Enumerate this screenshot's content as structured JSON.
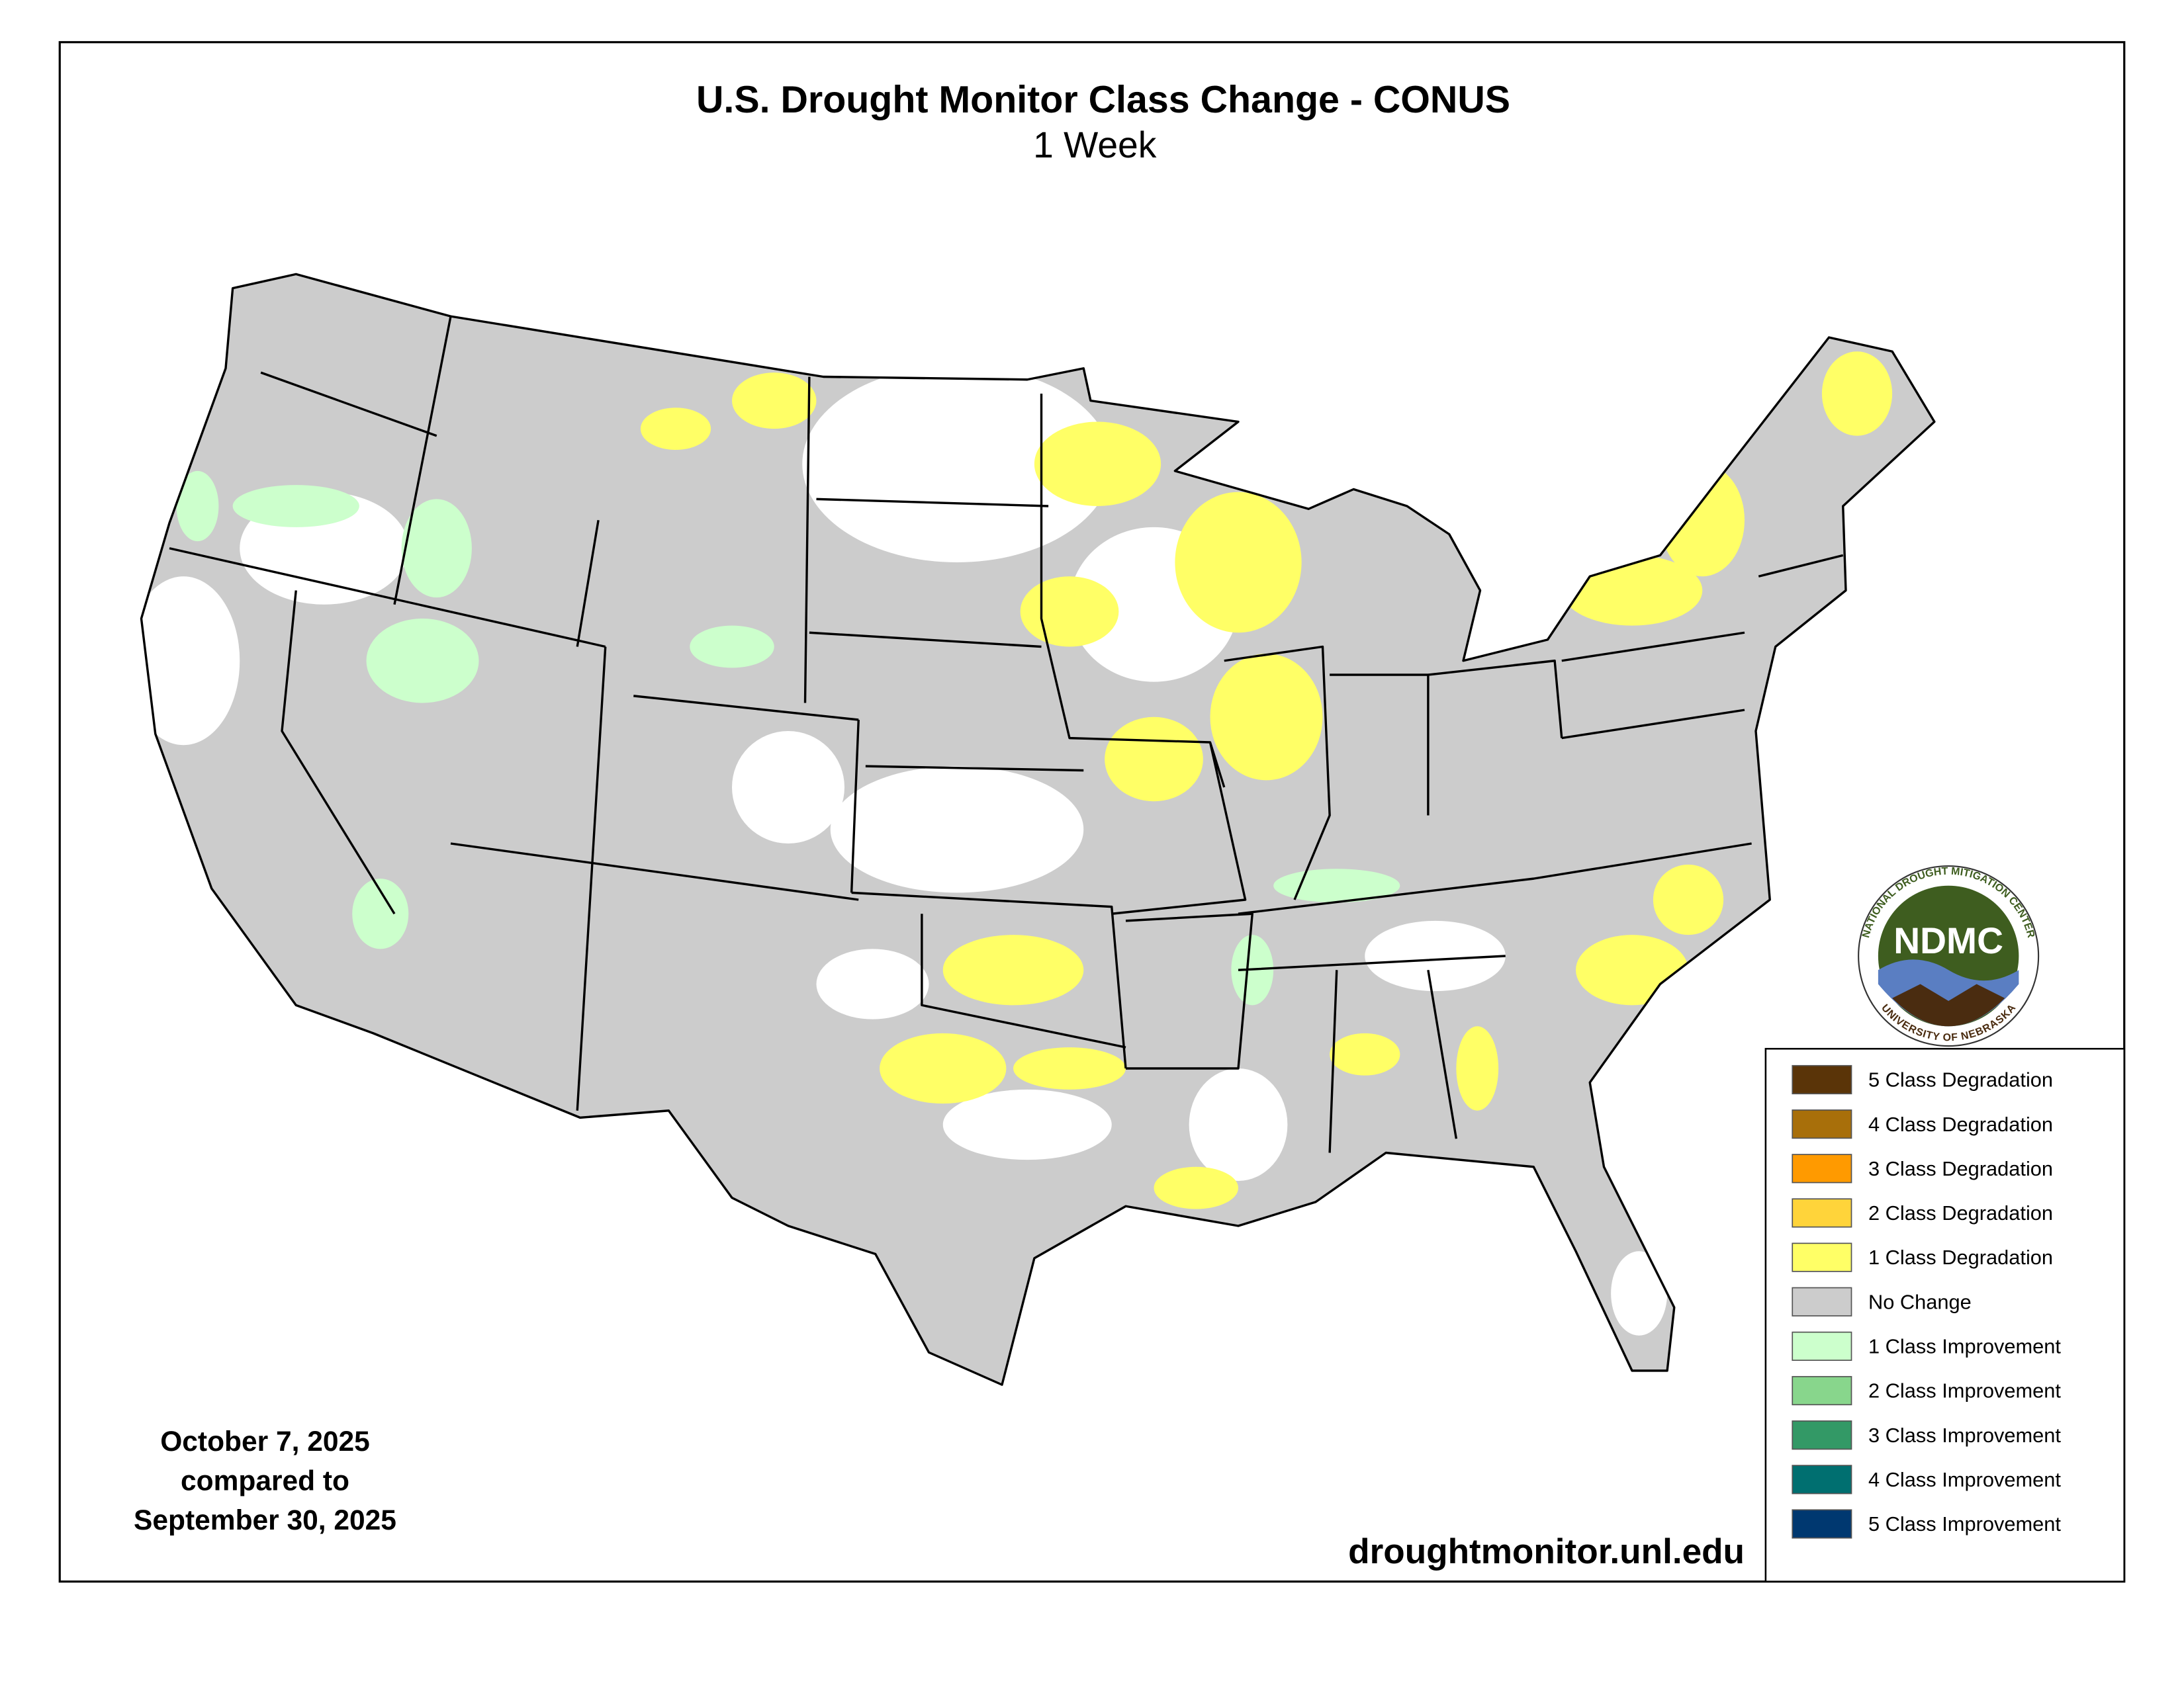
{
  "header": {
    "title": "U.S. Drought Monitor Class Change - CONUS",
    "subtitle": "1 Week"
  },
  "dates": [
    "October 7, 2025",
    "compared to",
    "September 30, 2025"
  ],
  "url": "droughtmonitor.unl.edu",
  "logo": {
    "name": "NDMC",
    "ring_top": "NATIONAL DROUGHT MITIGATION CENTER",
    "ring_bottom": "UNIVERSITY OF NEBRASKA"
  },
  "legend": [
    {
      "label": "5 Class Degradation",
      "color": "#5a3408"
    },
    {
      "label": "4 Class Degradation",
      "color": "#a86f0a"
    },
    {
      "label": "3 Class Degradation",
      "color": "#ff9a00"
    },
    {
      "label": "2 Class Degradation",
      "color": "#ffd43a"
    },
    {
      "label": "1 Class Degradation",
      "color": "#ffff66"
    },
    {
      "label": "No Change",
      "color": "#cccccc"
    },
    {
      "label": "1 Class Improvement",
      "color": "#ccffcc"
    },
    {
      "label": "2 Class Improvement",
      "color": "#88d68c"
    },
    {
      "label": "3 Class Improvement",
      "color": "#339966"
    },
    {
      "label": "4 Class Improvement",
      "color": "#006f70"
    },
    {
      "label": "5 Class Improvement",
      "color": "#003870"
    }
  ]
}
